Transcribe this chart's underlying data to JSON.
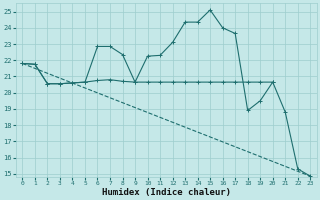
{
  "xlabel": "Humidex (Indice chaleur)",
  "bg_color": "#c5e8e8",
  "grid_color": "#9ecece",
  "line_color": "#1e6e6e",
  "text_color": "#1e6e6e",
  "xlim": [
    -0.5,
    23.5
  ],
  "ylim": [
    14.8,
    25.5
  ],
  "yticks": [
    15,
    16,
    17,
    18,
    19,
    20,
    21,
    22,
    23,
    24,
    25
  ],
  "xticks": [
    0,
    1,
    2,
    3,
    4,
    5,
    6,
    7,
    8,
    9,
    10,
    11,
    12,
    13,
    14,
    15,
    16,
    17,
    18,
    19,
    20,
    21,
    22,
    23
  ],
  "line1_x": [
    0,
    1,
    2,
    3,
    4,
    5,
    6,
    7,
    8,
    9,
    10,
    11,
    12,
    13,
    14,
    15,
    16,
    17,
    18,
    19,
    20
  ],
  "line1_y": [
    21.8,
    21.75,
    20.55,
    20.55,
    20.6,
    20.65,
    20.75,
    20.8,
    20.7,
    20.65,
    20.65,
    20.65,
    20.65,
    20.65,
    20.65,
    20.65,
    20.65,
    20.65,
    20.65,
    20.65,
    20.65
  ],
  "line2_x": [
    0,
    1,
    2,
    3,
    4,
    5,
    6,
    7,
    8,
    9,
    10,
    11,
    12,
    13,
    14,
    15,
    16,
    17,
    18,
    19,
    20,
    21,
    22,
    23
  ],
  "line2_y": [
    21.8,
    21.75,
    20.55,
    20.55,
    20.6,
    20.65,
    22.85,
    22.85,
    22.35,
    20.65,
    22.25,
    22.3,
    23.1,
    24.35,
    24.35,
    25.1,
    24.0,
    23.65,
    18.9,
    19.5,
    20.65,
    18.8,
    15.3,
    14.85
  ],
  "line3_x": [
    0,
    23
  ],
  "line3_y": [
    21.8,
    14.85
  ]
}
